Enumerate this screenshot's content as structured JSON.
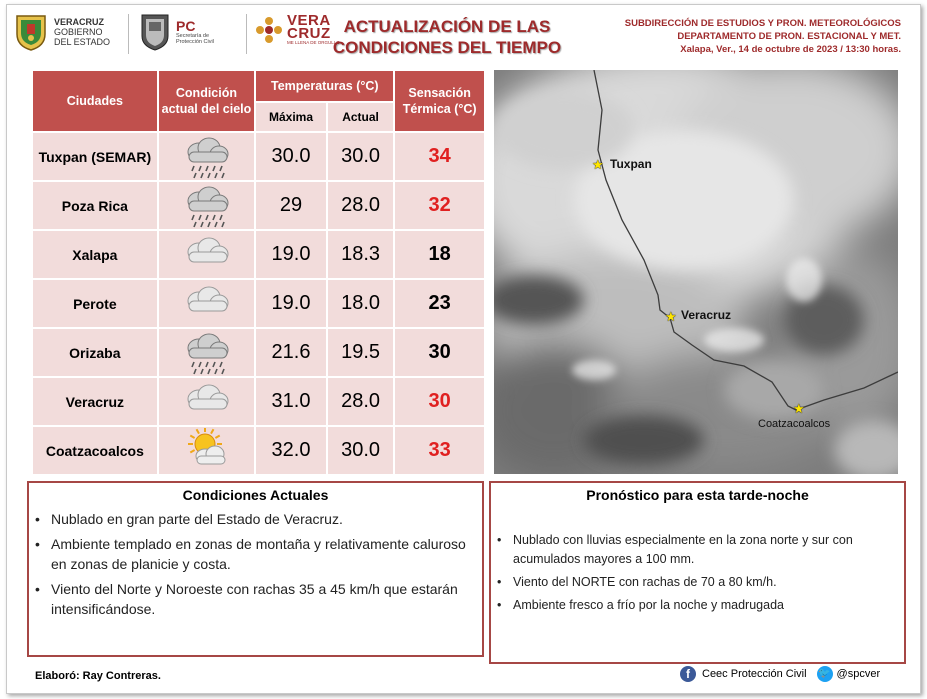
{
  "header": {
    "logo_veracruz": [
      "VERACRUZ",
      "GOBIERNO",
      "DEL ESTADO"
    ],
    "logo_pc_big": "PC",
    "logo_pc_small": [
      "Secretaría de",
      "Protección Civil"
    ],
    "logo_vc_big": [
      "VERA",
      "CRUZ"
    ],
    "logo_vc_small": "ME LLENA DE ORGULLO",
    "title_line1": "ACTUALIZACIÓN DE LAS",
    "title_line2": "CONDICIONES DEL TIEMPO",
    "right_line1": "SUBDIRECCIÓN DE ESTUDIOS Y PRON. METEOROLÓGICOS",
    "right_line2": "DEPARTAMENTO DE PRON. ESTACIONAL Y MET.",
    "right_line3": "Xalapa, Ver., 14 de octubre de 2023 / 13:30 horas."
  },
  "table": {
    "headers": {
      "city": "Ciudades",
      "condition": "Condición actual del cielo",
      "temps": "Temperaturas (°C)",
      "max": "Máxima",
      "current": "Actual",
      "sensation": "Sensación Térmica (°C)"
    },
    "rows": [
      {
        "city": "Tuxpan (SEMAR)",
        "icon": "rain-cloud-icon",
        "max": "30.0",
        "current": "30.0",
        "sensation": "34",
        "color": "#e02020"
      },
      {
        "city": "Poza Rica",
        "icon": "rain-cloud-icon",
        "max": "29",
        "current": "28.0",
        "sensation": "32",
        "color": "#e02020"
      },
      {
        "city": "Xalapa",
        "icon": "cloud-icon",
        "max": "19.0",
        "current": "18.3",
        "sensation": "18",
        "color": "#000000"
      },
      {
        "city": "Perote",
        "icon": "cloud-icon",
        "max": "19.0",
        "current": "18.0",
        "sensation": "23",
        "color": "#000000"
      },
      {
        "city": "Orizaba",
        "icon": "rain-cloud-icon",
        "max": "21.6",
        "current": "19.5",
        "sensation": "30",
        "color": "#000000"
      },
      {
        "city": "Veracruz",
        "icon": "cloud-icon",
        "max": "31.0",
        "current": "28.0",
        "sensation": "30",
        "color": "#e02020"
      },
      {
        "city": "Coatzacoalcos",
        "icon": "sun-cloud-icon",
        "max": "32.0",
        "current": "30.0",
        "sensation": "33",
        "color": "#e02020"
      }
    ]
  },
  "map": {
    "labels": [
      "Tuxpan",
      "Veracruz",
      "Coatzacoalcos"
    ]
  },
  "current_conditions": {
    "title": "Condiciones Actuales",
    "items": [
      "Nublado en gran parte del Estado de Veracruz.",
      "Ambiente templado en zonas de montaña y relativamente caluroso en zonas de planicie y costa.",
      "Viento del Norte y Noroeste con rachas 35 a 45 km/h que estarán intensificándose."
    ]
  },
  "forecast": {
    "title": "Pronóstico para esta tarde-noche",
    "items": [
      "Nublado con lluvias especialmente en la zona norte y sur con acumulados mayores a 100 mm.",
      "Viento del NORTE con rachas de 70 a 80 km/h.",
      "Ambiente fresco a frío por la noche y madrugada"
    ]
  },
  "footer": {
    "author": "Elaboró: Ray Contreras.",
    "facebook": "Ceec Protección Civil",
    "twitter": "@spcver"
  },
  "colors": {
    "brand": "#9e2a2b",
    "header_fill": "#c0504d",
    "row_fill": "#f2dcdb",
    "hot": "#e02020"
  }
}
